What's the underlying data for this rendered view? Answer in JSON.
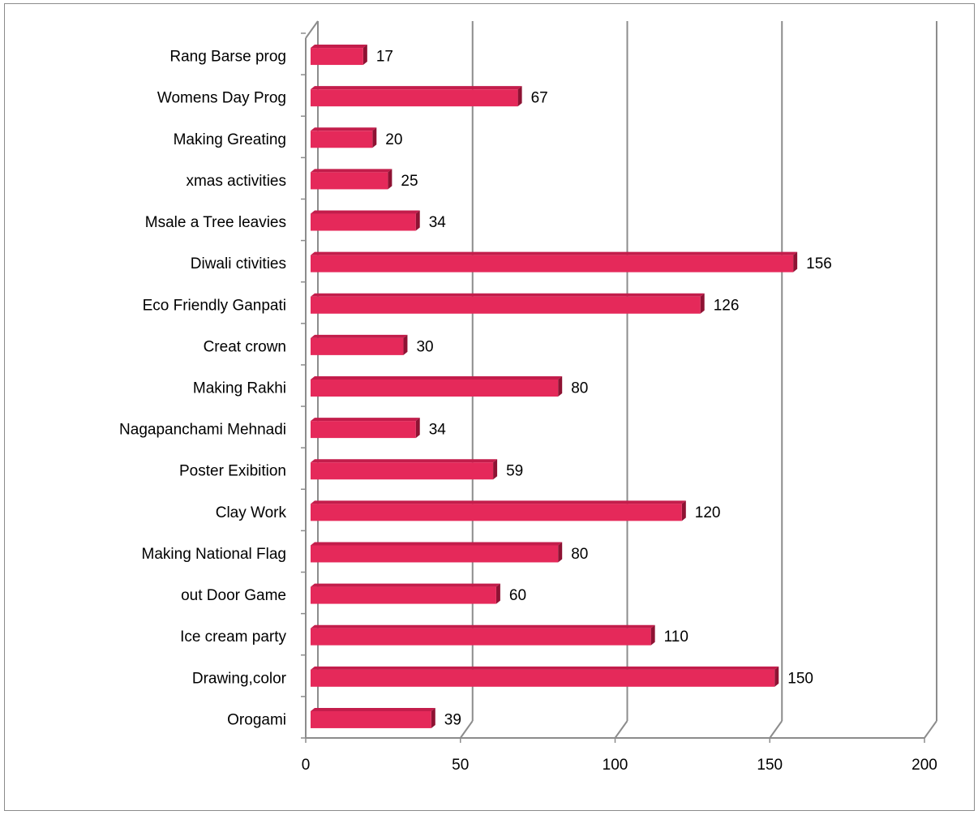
{
  "chart_data": {
    "type": "bar",
    "orientation": "horizontal",
    "style": "3d",
    "title": "",
    "xlabel": "",
    "ylabel": "",
    "categories": [
      "Rang Barse prog",
      "Womens Day Prog",
      "Making Greating",
      "xmas activities",
      "Msale a Tree leavies",
      "Diwali ctivities",
      "Eco Friendly Ganpati",
      "Creat crown",
      "Making Rakhi",
      "Nagapanchami Mehnadi",
      "Poster Exibition",
      "Clay Work",
      "Making National Flag",
      "out Door Game",
      "Ice cream party",
      "Drawing,color",
      "Orogami"
    ],
    "values": [
      17,
      67,
      20,
      25,
      34,
      156,
      126,
      30,
      80,
      34,
      59,
      120,
      80,
      60,
      110,
      150,
      39
    ],
    "value_labels": [
      "17",
      "67",
      "20",
      "25",
      "34",
      "156",
      "126",
      "30",
      "80",
      "34",
      "59",
      "120",
      "80",
      "60",
      "110",
      "150",
      "39"
    ],
    "xlim": [
      0,
      200
    ],
    "x_ticks": [
      0,
      50,
      100,
      150,
      200
    ],
    "x_tick_labels": [
      "0",
      "50",
      "100",
      "150",
      "200"
    ],
    "grid": "vertical",
    "legend": "none",
    "colors": {
      "bar_front": "#e5295a",
      "bar_top": "#c31d4b",
      "bar_side": "#8e1233",
      "grid": "#8c8c8c",
      "frame": "#8c8c8c"
    }
  }
}
